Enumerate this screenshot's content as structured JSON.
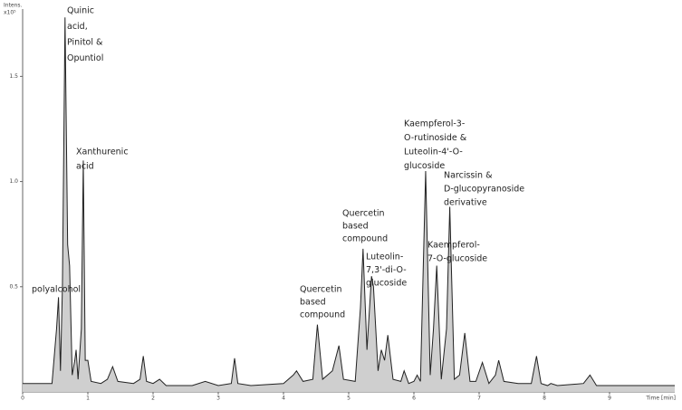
{
  "chart_data": {
    "type": "line",
    "y_label": "Intens.",
    "y_unit": "x10⁵",
    "x_label": "Time [min]",
    "xlim": [
      0,
      10
    ],
    "ylim": [
      0,
      1.82
    ],
    "xticks": [
      0,
      1,
      2,
      3,
      4,
      5,
      6,
      7,
      8,
      9
    ],
    "yticks": [
      0.5,
      {
        "value": 1,
        "label": "1.0"
      },
      1.5
    ],
    "color": "#222222",
    "fill": "#cfcfcf",
    "x": [
      0,
      0.45,
      0.52,
      0.55,
      0.58,
      0.61,
      0.65,
      0.69,
      0.72,
      0.76,
      0.8,
      0.82,
      0.85,
      0.9,
      0.93,
      0.96,
      1.0,
      1.05,
      1.2,
      1.3,
      1.38,
      1.46,
      1.7,
      1.8,
      1.85,
      1.9,
      2.0,
      2.1,
      2.2,
      2.6,
      2.8,
      3.0,
      3.2,
      3.25,
      3.3,
      3.5,
      4.0,
      4.15,
      4.2,
      4.3,
      4.45,
      4.52,
      4.6,
      4.75,
      4.85,
      4.92,
      5.1,
      5.18,
      5.22,
      5.28,
      5.35,
      5.38,
      5.45,
      5.5,
      5.55,
      5.6,
      5.68,
      5.8,
      5.85,
      5.92,
      6.0,
      6.05,
      6.1,
      6.18,
      6.25,
      6.3,
      6.35,
      6.42,
      6.5,
      6.55,
      6.62,
      6.7,
      6.78,
      6.86,
      6.95,
      7.05,
      7.15,
      7.25,
      7.3,
      7.38,
      7.6,
      7.8,
      7.88,
      7.95,
      8.05,
      8.1,
      8.2,
      8.6,
      8.7,
      8.8,
      9.0,
      9.5,
      10
    ],
    "values": [
      0.04,
      0.04,
      0.3,
      0.45,
      0.1,
      0.5,
      1.78,
      0.7,
      0.6,
      0.08,
      0.15,
      0.2,
      0.06,
      0.3,
      1.1,
      0.15,
      0.15,
      0.05,
      0.04,
      0.06,
      0.12,
      0.05,
      0.04,
      0.06,
      0.17,
      0.05,
      0.04,
      0.06,
      0.03,
      0.03,
      0.05,
      0.03,
      0.04,
      0.16,
      0.04,
      0.03,
      0.04,
      0.08,
      0.1,
      0.05,
      0.06,
      0.32,
      0.06,
      0.1,
      0.22,
      0.06,
      0.05,
      0.4,
      0.68,
      0.2,
      0.55,
      0.5,
      0.1,
      0.2,
      0.15,
      0.27,
      0.06,
      0.05,
      0.1,
      0.04,
      0.05,
      0.08,
      0.05,
      1.05,
      0.08,
      0.3,
      0.6,
      0.06,
      0.3,
      0.88,
      0.06,
      0.08,
      0.28,
      0.05,
      0.05,
      0.14,
      0.04,
      0.08,
      0.15,
      0.05,
      0.04,
      0.04,
      0.17,
      0.04,
      0.03,
      0.04,
      0.03,
      0.04,
      0.08,
      0.03,
      0.03,
      0.03,
      0.03
    ],
    "annotations": [
      [
        "Quinic",
        "acid,",
        "Pinitol &",
        "Opuntiol"
      ],
      [
        "Xanthurenic",
        "acid"
      ],
      [
        "polyalcohol"
      ],
      [
        "Quercetin",
        "based",
        "compound"
      ],
      [
        "Quercetin",
        "based",
        "compound"
      ],
      [
        "Luteolin-",
        "7,3'-di-O-",
        "glucoside"
      ],
      [
        "Kaempferol-3-",
        "O-rutinoside &",
        "Luteolin-4'-O-",
        "glucoside"
      ],
      [
        "Narcissin &",
        "D-glucopyranoside",
        "derivative"
      ],
      [
        "Kaempferol-",
        "7-O-glucoside"
      ]
    ]
  }
}
